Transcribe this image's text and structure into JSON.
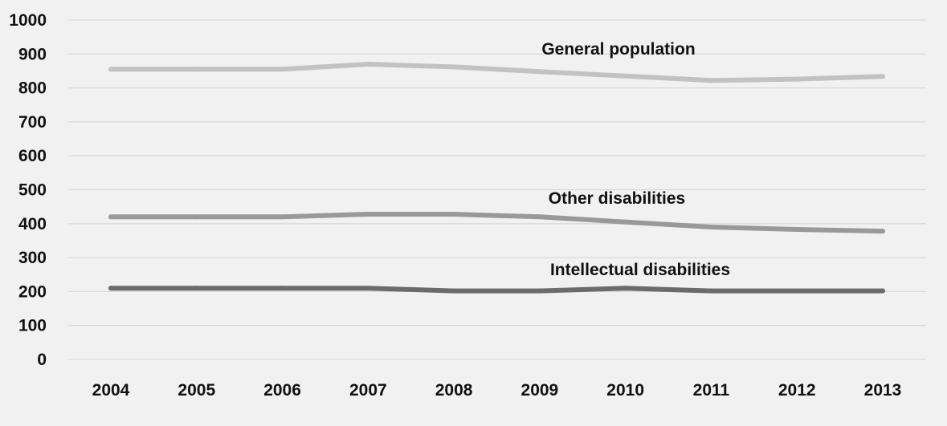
{
  "chart_data": {
    "type": "line",
    "title": "",
    "xlabel": "",
    "ylabel": "",
    "x": [
      "2004",
      "2005",
      "2006",
      "2007",
      "2008",
      "2009",
      "2010",
      "2011",
      "2012",
      "2013"
    ],
    "ylim": [
      0,
      1000
    ],
    "yticks": [
      "0",
      "100",
      "200",
      "300",
      "400",
      "500",
      "600",
      "700",
      "800",
      "900",
      "1000"
    ],
    "grid": true,
    "legend": "none",
    "series": [
      {
        "name": "General population",
        "color": "#c2c2c2",
        "values": [
          855,
          855,
          855,
          870,
          862,
          848,
          835,
          822,
          826,
          834
        ]
      },
      {
        "name": "Other disabilities",
        "color": "#999999",
        "values": [
          420,
          420,
          420,
          428,
          428,
          420,
          405,
          390,
          383,
          378
        ]
      },
      {
        "name": "Intellectual disabilities",
        "color": "#6b6b6b",
        "values": [
          210,
          210,
          210,
          210,
          202,
          202,
          210,
          202,
          202,
          202
        ]
      }
    ]
  }
}
